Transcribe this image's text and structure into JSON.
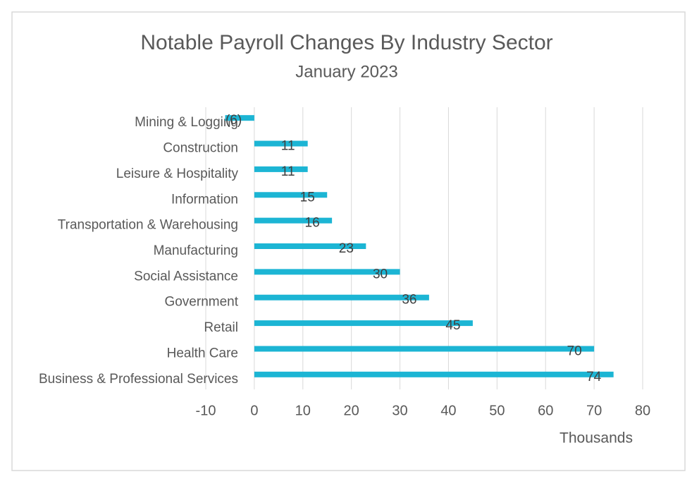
{
  "chart_data": {
    "type": "bar",
    "orientation": "horizontal",
    "title": "Notable Payroll Changes By Industry Sector",
    "subtitle": "January 2023",
    "x_axis_title": "Thousands",
    "categories": [
      "Mining & Logging",
      "Construction",
      "Leisure & Hospitality",
      "Information",
      "Transportation & Warehousing",
      "Manufacturing",
      "Social Assistance",
      "Government",
      "Retail",
      "Health Care",
      "Business & Professional Services"
    ],
    "values": [
      -6,
      11,
      11,
      15,
      16,
      23,
      30,
      36,
      45,
      70,
      74
    ],
    "value_labels": [
      "(6)",
      "11",
      "11",
      "15",
      "16",
      "23",
      "30",
      "36",
      "45",
      "70",
      "74"
    ],
    "color": "#1cb5d4",
    "xlim": [
      -10,
      80
    ],
    "xticks": [
      -10,
      0,
      10,
      20,
      30,
      40,
      50,
      60,
      70,
      80
    ],
    "grid": true
  }
}
